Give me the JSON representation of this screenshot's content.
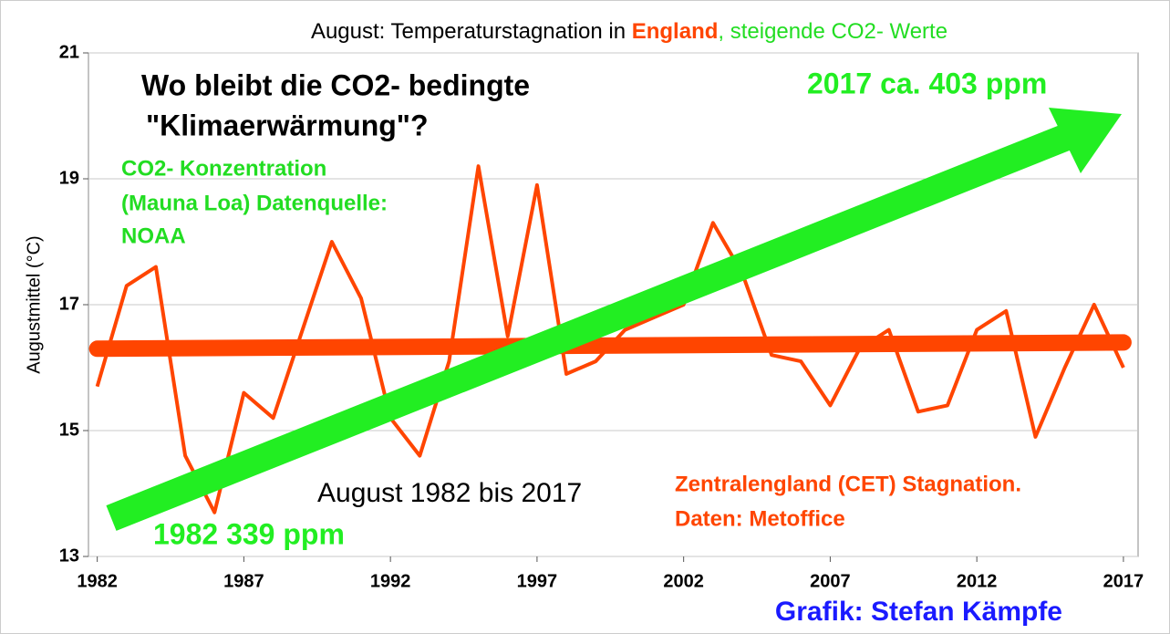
{
  "chart_data": {
    "type": "line",
    "title": [
      "August: Temperaturstagnation in ",
      "England",
      ", steigende CO2- Werte"
    ],
    "y_label": "Augustmittel (°C)",
    "x": [
      1982,
      1983,
      1984,
      1985,
      1986,
      1987,
      1988,
      1989,
      1990,
      1991,
      1992,
      1993,
      1994,
      1995,
      1996,
      1997,
      1998,
      1999,
      2000,
      2001,
      2002,
      2003,
      2004,
      2005,
      2006,
      2007,
      2008,
      2009,
      2010,
      2011,
      2012,
      2013,
      2014,
      2015,
      2016,
      2017
    ],
    "series": [
      {
        "name": "Zentralengland (CET)",
        "color": "#ff4500",
        "values": [
          15.7,
          17.3,
          17.6,
          14.6,
          13.7,
          15.6,
          15.2,
          16.6,
          18.0,
          17.1,
          15.2,
          14.6,
          16.1,
          19.2,
          16.5,
          18.9,
          15.9,
          16.1,
          16.6,
          16.8,
          17.0,
          18.3,
          17.5,
          16.2,
          16.1,
          15.4,
          16.3,
          16.6,
          15.3,
          15.4,
          16.6,
          16.9,
          14.9,
          16.0,
          17.0,
          16.0
        ]
      }
    ],
    "trend": {
      "color": "#ff4500",
      "values": [
        16.3,
        16.4
      ]
    },
    "xlim": [
      1981.7,
      2017.5
    ],
    "ylim": [
      13,
      21
    ],
    "xticks": [
      1982,
      1987,
      1992,
      1997,
      2002,
      2007,
      2012,
      2017
    ],
    "yticks": [
      13,
      15,
      17,
      19,
      21
    ],
    "grid": true,
    "annotations": {
      "question": [
        "Wo bleibt die CO2- bedingte",
        "\"Klimaerwärmung\"?"
      ],
      "co2_source": [
        "CO2- Konzentration",
        "(Mauna Loa) Datenquelle:",
        "NOAA"
      ],
      "co2_end": "2017 ca. 403 ppm",
      "co2_start": "1982 339 ppm",
      "period": "August 1982 bis 2017",
      "cet": [
        "Zentralengland (CET) Stagnation.",
        "Daten: Metoffice"
      ],
      "credit": "Grafik: Stefan Kämpfe"
    }
  }
}
